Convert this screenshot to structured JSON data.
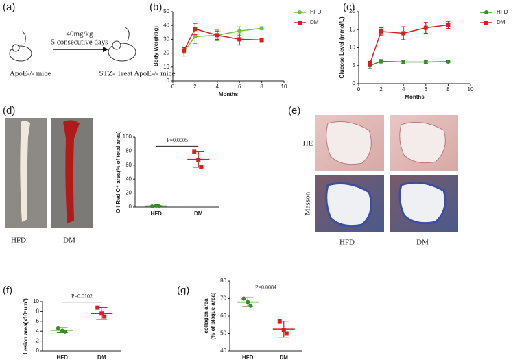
{
  "panel_labels": [
    "(a)",
    "(b)",
    "(c)",
    "(d)",
    "(e)",
    "(f)",
    "(g)"
  ],
  "schematic": {
    "dose": "40mg/kg",
    "duration": "5 consecutive days",
    "left_label": "ApoE-/- mice",
    "right_label": "STZ- Treat ApoE-/- mice"
  },
  "aorta_photos": {
    "labels": [
      "HFD",
      "DM"
    ]
  },
  "histology": {
    "row_labels": [
      "HE",
      "Masson"
    ],
    "col_labels": [
      "HFD",
      "DM"
    ]
  },
  "chart_data": [
    {
      "type": "line",
      "xlabel": "Months",
      "ylabel": "Body Weight(g)",
      "x": [
        1,
        2,
        4,
        6,
        8
      ],
      "xlim": [
        0,
        10
      ],
      "xticks": [
        0,
        2,
        4,
        6,
        8,
        10
      ],
      "ylim": [
        0,
        50
      ],
      "yticks": [
        0,
        10,
        20,
        30,
        40,
        50
      ],
      "legend": "right",
      "series": [
        {
          "name": "HFD",
          "color": "#6cc43a",
          "marker": "circle",
          "values": [
            21,
            32,
            33,
            36,
            38
          ],
          "errors": [
            3,
            5,
            4,
            3,
            1
          ]
        },
        {
          "name": "DM",
          "color": "#d81e1e",
          "marker": "square",
          "values": [
            22,
            37.5,
            33,
            30,
            29.5
          ],
          "errors": [
            2,
            4,
            3,
            4,
            1
          ]
        }
      ]
    },
    {
      "type": "line",
      "xlabel": "Months",
      "ylabel": "Glucose Level (mmol/L)",
      "x": [
        1,
        2,
        4,
        6,
        8
      ],
      "xlim": [
        0,
        10
      ],
      "xticks": [
        0,
        2,
        4,
        6,
        8,
        10
      ],
      "ylim": [
        0,
        20
      ],
      "yticks": [
        0,
        5,
        10,
        15,
        20
      ],
      "legend": "right",
      "series": [
        {
          "name": "HFD",
          "color": "#3c8a28",
          "marker": "circle",
          "values": [
            5,
            6.2,
            6,
            6,
            6.1
          ],
          "errors": [
            0.8,
            0.5,
            0.4,
            0.4,
            0.3
          ]
        },
        {
          "name": "DM",
          "color": "#d81e1e",
          "marker": "square",
          "values": [
            5.5,
            14.5,
            14,
            15.5,
            16.3
          ],
          "errors": [
            0.7,
            1,
            1.8,
            1.5,
            1
          ]
        }
      ]
    },
    {
      "type": "dot",
      "ylabel": "Oil Red O⁺ area(% of total area)",
      "annotation": "P=0.0005",
      "categories": [
        "HFD",
        "DM"
      ],
      "colors": [
        "#3c8a28",
        "#d81e1e"
      ],
      "markers": [
        "circle",
        "square"
      ],
      "points": [
        [
          1,
          2,
          1.5
        ],
        [
          79,
          67,
          57
        ]
      ],
      "means": [
        1.5,
        68
      ],
      "sd": [
        0.5,
        11
      ],
      "ylim": [
        0,
        100
      ],
      "yticks": [
        0,
        20,
        40,
        60,
        80,
        100
      ]
    },
    {
      "type": "dot",
      "ylabel": "Lesion area(x10⁵um²)",
      "annotation": "P=0.0102",
      "categories": [
        "HFD",
        "DM"
      ],
      "colors": [
        "#3c8a28",
        "#d81e1e"
      ],
      "markers": [
        "circle",
        "square"
      ],
      "points": [
        [
          4.6,
          4.1,
          3.9
        ],
        [
          8.8,
          7.6,
          7.0
        ]
      ],
      "means": [
        4.2,
        7.6
      ],
      "sd": [
        0.5,
        1.2
      ],
      "ylim": [
        0,
        10
      ],
      "yticks": [
        0,
        2,
        4,
        6,
        8,
        10
      ]
    },
    {
      "type": "dot",
      "ylabel": [
        "collagen area",
        "(% of plaque area)"
      ],
      "annotation": "P=0.0084",
      "categories": [
        "HFD",
        "DM"
      ],
      "colors": [
        "#3c8a28",
        "#d81e1e"
      ],
      "markers": [
        "circle",
        "square"
      ],
      "points": [
        [
          70,
          68,
          66
        ],
        [
          57,
          52,
          50
        ]
      ],
      "means": [
        68,
        52.5
      ],
      "sd": [
        2.5,
        4.5
      ],
      "ylim": [
        40,
        80
      ],
      "yticks": [
        40,
        50,
        60,
        70,
        80
      ]
    }
  ]
}
